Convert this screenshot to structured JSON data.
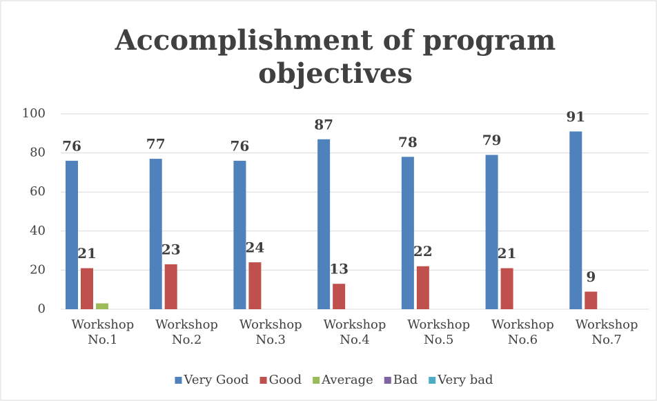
{
  "chart_data": {
    "type": "bar",
    "title": [
      "Accomplishment of program",
      "objectives"
    ],
    "categories": [
      "Workshop No.1",
      "Workshop No.2",
      "Workshop No.3",
      "Workshop No.4",
      "Workshop No.5",
      "Workshop No.6",
      "Workshop No.7"
    ],
    "series": [
      {
        "name": "Very Good",
        "color": "#4f81bd",
        "data_labels": true,
        "values": [
          76,
          77,
          76,
          87,
          78,
          79,
          91
        ]
      },
      {
        "name": "Good",
        "color": "#c0504d",
        "data_labels": true,
        "values": [
          21,
          23,
          24,
          13,
          22,
          21,
          9
        ]
      },
      {
        "name": "Average",
        "color": "#9bbb59",
        "data_labels": false,
        "values": [
          3,
          0,
          0,
          0,
          0,
          0,
          0
        ]
      },
      {
        "name": "Bad",
        "color": "#8064a2",
        "data_labels": false,
        "values": [
          0,
          0,
          0,
          0,
          0,
          0,
          0
        ]
      },
      {
        "name": "Very bad",
        "color": "#4bacc6",
        "data_labels": false,
        "values": [
          0,
          0,
          0,
          0,
          0,
          0,
          0
        ]
      }
    ],
    "ylim": [
      0,
      100
    ],
    "yticks": [
      0,
      20,
      40,
      60,
      80,
      100
    ],
    "grid": true,
    "legend": "bottom"
  }
}
